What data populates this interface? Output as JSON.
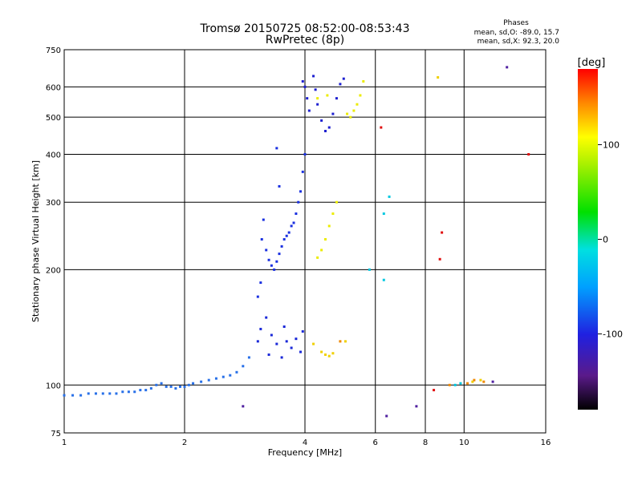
{
  "chart_data": {
    "type": "scatter",
    "title": "Tromsø 20150725 08:52:00-08:53:43",
    "subtitle": "RwPretec (8p)",
    "xlabel": "Frequency [MHz]",
    "ylabel": "Stationary phase Virtual Height [km]",
    "x_scale": "log",
    "y_scale": "log",
    "xlim": [
      1,
      16
    ],
    "ylim": [
      75,
      750
    ],
    "x_ticks": [
      1,
      2,
      4,
      6,
      8,
      10,
      16
    ],
    "x_tick_labels": [
      "1",
      "2",
      "4",
      "6",
      "8",
      "10",
      "16"
    ],
    "y_ticks": [
      75,
      100,
      200,
      300,
      400,
      500,
      600,
      750
    ],
    "y_tick_labels": [
      "75",
      "100",
      "200",
      "300",
      "400",
      "500",
      "600",
      "750"
    ],
    "grid": true,
    "info": {
      "title": "Phases",
      "line1": "mean, sd,O: -89.0, 15.7",
      "line2": "mean, sd,X:  92.3, 20.0"
    },
    "colorbar": {
      "label": "[deg]",
      "range": [
        -180,
        180
      ],
      "ticks": [
        -100,
        0,
        100
      ],
      "tick_labels": [
        "-100",
        "0",
        "100"
      ]
    },
    "series": [
      {
        "color": "#2870e8",
        "points": [
          [
            1.0,
            94
          ],
          [
            1.05,
            94
          ],
          [
            1.1,
            94
          ],
          [
            1.15,
            95
          ],
          [
            1.2,
            95
          ],
          [
            1.25,
            95
          ],
          [
            1.3,
            95
          ],
          [
            1.35,
            95
          ],
          [
            1.4,
            96
          ],
          [
            1.45,
            96
          ],
          [
            1.5,
            96
          ],
          [
            1.55,
            97
          ],
          [
            1.6,
            97
          ],
          [
            1.65,
            98
          ],
          [
            1.7,
            100
          ],
          [
            1.75,
            101
          ],
          [
            1.8,
            99
          ],
          [
            1.85,
            99
          ],
          [
            1.9,
            98
          ],
          [
            1.95,
            99
          ],
          [
            2.0,
            99
          ],
          [
            2.05,
            100
          ],
          [
            2.1,
            101
          ],
          [
            2.2,
            102
          ],
          [
            2.3,
            103
          ],
          [
            2.4,
            104
          ],
          [
            2.5,
            105
          ],
          [
            2.6,
            106
          ],
          [
            2.7,
            108
          ],
          [
            2.8,
            112
          ],
          [
            2.9,
            118
          ]
        ]
      },
      {
        "color": "#1a30e0",
        "points": [
          [
            3.05,
            170
          ],
          [
            3.1,
            185
          ],
          [
            3.12,
            240
          ],
          [
            3.15,
            270
          ],
          [
            3.2,
            225
          ],
          [
            3.25,
            212
          ],
          [
            3.3,
            205
          ],
          [
            3.35,
            200
          ],
          [
            3.4,
            210
          ],
          [
            3.45,
            220
          ],
          [
            3.5,
            230
          ],
          [
            3.55,
            240
          ],
          [
            3.6,
            245
          ],
          [
            3.65,
            250
          ],
          [
            3.7,
            260
          ],
          [
            3.75,
            265
          ],
          [
            3.8,
            280
          ],
          [
            3.85,
            300
          ],
          [
            3.9,
            320
          ],
          [
            3.95,
            360
          ],
          [
            4.0,
            400
          ],
          [
            3.45,
            330
          ],
          [
            3.4,
            415
          ]
        ]
      },
      {
        "color": "#1a28d8",
        "points": [
          [
            3.05,
            130
          ],
          [
            3.1,
            140
          ],
          [
            3.2,
            150
          ],
          [
            3.25,
            120
          ],
          [
            3.3,
            135
          ],
          [
            3.4,
            128
          ],
          [
            3.5,
            118
          ],
          [
            3.55,
            142
          ],
          [
            3.6,
            130
          ],
          [
            3.7,
            125
          ],
          [
            3.8,
            132
          ],
          [
            3.9,
            122
          ],
          [
            3.95,
            138
          ]
        ]
      },
      {
        "color": "#1e20d0",
        "points": [
          [
            3.95,
            620
          ],
          [
            4.0,
            600
          ],
          [
            4.05,
            560
          ],
          [
            4.1,
            520
          ],
          [
            4.2,
            640
          ],
          [
            4.25,
            590
          ],
          [
            4.3,
            540
          ],
          [
            4.4,
            490
          ],
          [
            4.5,
            460
          ],
          [
            4.6,
            470
          ],
          [
            4.7,
            510
          ],
          [
            4.8,
            560
          ],
          [
            4.9,
            610
          ],
          [
            5.0,
            630
          ]
        ]
      },
      {
        "color": "#ecec00",
        "points": [
          [
            4.3,
            215
          ],
          [
            4.4,
            225
          ],
          [
            4.5,
            240
          ],
          [
            4.6,
            260
          ],
          [
            4.7,
            280
          ],
          [
            4.8,
            300
          ],
          [
            5.1,
            510
          ],
          [
            5.2,
            500
          ],
          [
            5.3,
            520
          ],
          [
            5.4,
            540
          ],
          [
            5.5,
            570
          ],
          [
            5.6,
            620
          ],
          [
            4.3,
            560
          ],
          [
            4.55,
            570
          ]
        ]
      },
      {
        "color": "#f0d000",
        "points": [
          [
            4.4,
            122
          ],
          [
            4.5,
            120
          ],
          [
            4.6,
            119
          ],
          [
            4.7,
            121
          ],
          [
            4.2,
            128
          ],
          [
            5.05,
            130
          ],
          [
            8.6,
            635
          ],
          [
            11.0,
            103
          ],
          [
            10.5,
            102
          ]
        ]
      },
      {
        "color": "#f08800",
        "points": [
          [
            10.2,
            101
          ],
          [
            10.6,
            103
          ],
          [
            11.2,
            102
          ],
          [
            9.2,
            100
          ],
          [
            4.9,
            130
          ]
        ]
      },
      {
        "color": "#e01010",
        "points": [
          [
            6.2,
            470
          ],
          [
            8.7,
            213
          ],
          [
            8.8,
            250
          ],
          [
            14.5,
            400
          ],
          [
            8.4,
            97
          ]
        ]
      },
      {
        "color": "#00c8e0",
        "points": [
          [
            6.3,
            280
          ],
          [
            6.3,
            188
          ],
          [
            6.5,
            310
          ],
          [
            9.5,
            100
          ],
          [
            9.8,
            101
          ],
          [
            5.8,
            200
          ]
        ]
      },
      {
        "color": "#5020a0",
        "points": [
          [
            12.8,
            675
          ],
          [
            6.4,
            83
          ],
          [
            7.6,
            88
          ],
          [
            2.8,
            88
          ],
          [
            11.8,
            102
          ]
        ]
      }
    ]
  }
}
